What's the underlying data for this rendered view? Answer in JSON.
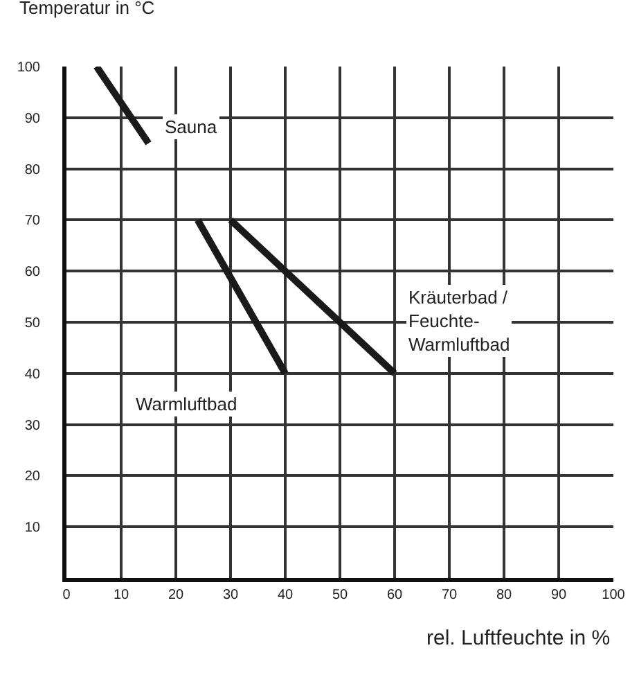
{
  "chart_data": {
    "type": "line",
    "xlabel": "rel. Luftfeuchte in %",
    "ylabel": "Temperatur in °C",
    "series": [
      {
        "name": "Sauna",
        "color": "#1a1a1a",
        "x": [
          5.5,
          15
        ],
        "values": [
          100,
          85
        ]
      },
      {
        "name": "Warmluftbad",
        "color": "#1a1a1a",
        "x": [
          24,
          40
        ],
        "values": [
          70,
          40
        ]
      },
      {
        "name": "Kräuterbad /\nFeuchte-\nWarmluftbad",
        "color": "#1a1a1a",
        "x": [
          30,
          60
        ],
        "values": [
          70,
          40
        ]
      }
    ],
    "xlim": [
      0,
      100
    ],
    "ylim": [
      0,
      100
    ],
    "xticks": [
      0,
      10,
      20,
      30,
      40,
      50,
      60,
      70,
      80,
      90,
      100
    ],
    "yticks": [
      10,
      20,
      30,
      40,
      50,
      60,
      70,
      80,
      90,
      100
    ],
    "grid": true,
    "legend": false,
    "marker": "none",
    "line_style": "solid"
  }
}
